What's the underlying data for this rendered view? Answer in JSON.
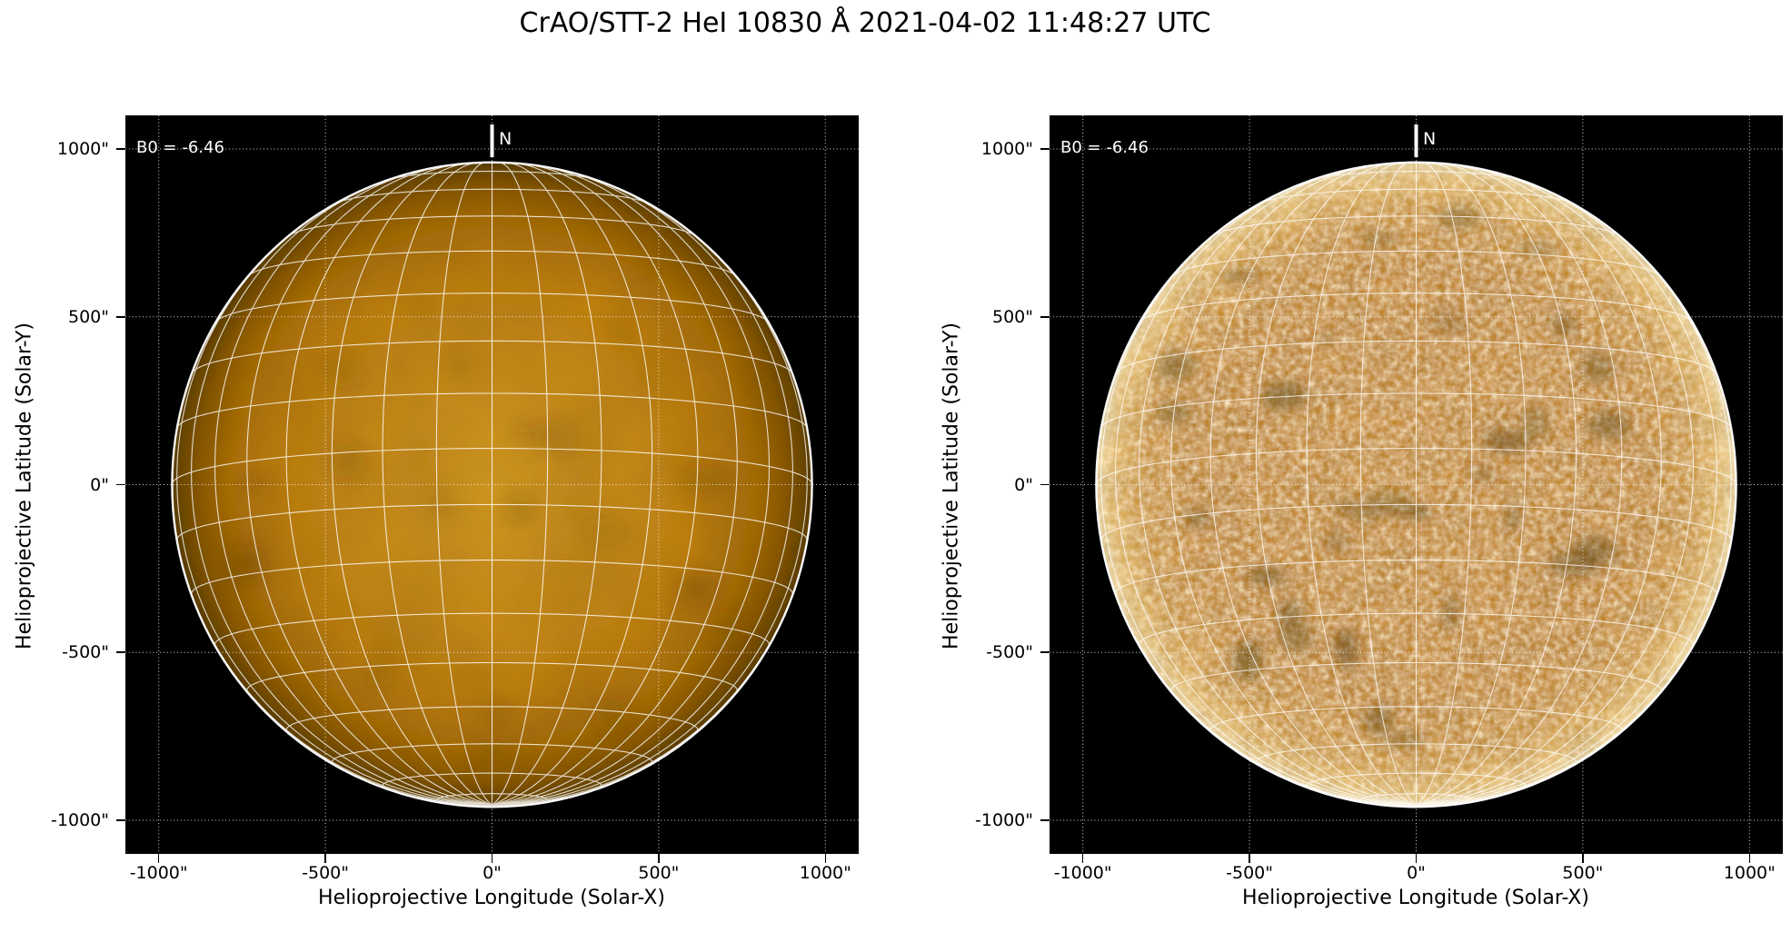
{
  "title": "CrAO/STT-2 HeI 10830 Å 2021-04-02 11:48:27 UTC",
  "axes": {
    "xlabel": "Helioprojective Longitude (Solar-X)",
    "ylabel": "Helioprojective Latitude (Solar-Y)",
    "xlim": [
      -1100,
      1100
    ],
    "ylim": [
      -1100,
      1100
    ],
    "xticks": [
      {
        "value": -1000,
        "label": "-1000\""
      },
      {
        "value": -500,
        "label": "-500\""
      },
      {
        "value": 0,
        "label": "0\""
      },
      {
        "value": 500,
        "label": "500\""
      },
      {
        "value": 1000,
        "label": "1000\""
      }
    ],
    "yticks": [
      {
        "value": 1000,
        "label": "1000\""
      },
      {
        "value": 500,
        "label": "500\""
      },
      {
        "value": 0,
        "label": "0\""
      },
      {
        "value": -500,
        "label": "-500\""
      },
      {
        "value": -1000,
        "label": "-1000\""
      }
    ]
  },
  "panels": [
    {
      "name": "intensity-disk",
      "b0_label": "B0 = -6.46",
      "b0_deg": -6.46,
      "north_label": "N"
    },
    {
      "name": "enhanced-disk",
      "b0_label": "B0 = -6.46",
      "b0_deg": -6.46,
      "north_label": "N"
    }
  ],
  "solar": {
    "radius_arcsec": 960,
    "grid_step_deg": 10
  },
  "colors": {
    "figure_bg": "#ffffff",
    "plot_bg": "#000000",
    "axis_text": "#000000",
    "annotation_text": "#ffffff",
    "helio_grid": "#ffffff",
    "dotted_grid": "#ffffff",
    "limb": "#ffffff",
    "disk_center_left": "#d29427",
    "disk_edge_left": "#5e3f07",
    "disk_base_right": "#cf8e1e",
    "disk_rim_right": "#f6e3b0"
  },
  "chart_data": [
    {
      "type": "heatmap",
      "title": "HeI 10830 Å full-disk filtergram (limb-darkened intensity)",
      "xlabel": "Helioprojective Longitude (Solar-X)",
      "ylabel": "Helioprojective Latitude (Solar-Y)",
      "xlim": [
        -1100,
        1100
      ],
      "ylim": [
        -1100,
        1100
      ],
      "xticks": [
        -1000,
        -500,
        0,
        500,
        1000
      ],
      "yticks": [
        -1000,
        -500,
        0,
        500,
        1000
      ],
      "grid": "dotted axis grid every 500 arcsec; heliographic lon/lat grid every 10 deg overlaid on disk",
      "annotations": [
        "B0 = -6.46",
        "N marker at solar north (top, Solar-X = 0)"
      ],
      "solar_radius_arcsec": 960
    },
    {
      "type": "heatmap",
      "title": "HeI 10830 Å full-disk filtergram (contrast-enhanced / flattened)",
      "xlabel": "Helioprojective Longitude (Solar-X)",
      "ylabel": "Helioprojective Latitude (Solar-Y)",
      "xlim": [
        -1100,
        1100
      ],
      "ylim": [
        -1100,
        1100
      ],
      "xticks": [
        -1000,
        -500,
        0,
        500,
        1000
      ],
      "yticks": [
        -1000,
        -500,
        0,
        500,
        1000
      ],
      "grid": "dotted axis grid every 500 arcsec; heliographic lon/lat grid every 10 deg overlaid on disk",
      "annotations": [
        "B0 = -6.46",
        "N marker at solar north (top, Solar-X = 0)"
      ],
      "solar_radius_arcsec": 960
    }
  ]
}
